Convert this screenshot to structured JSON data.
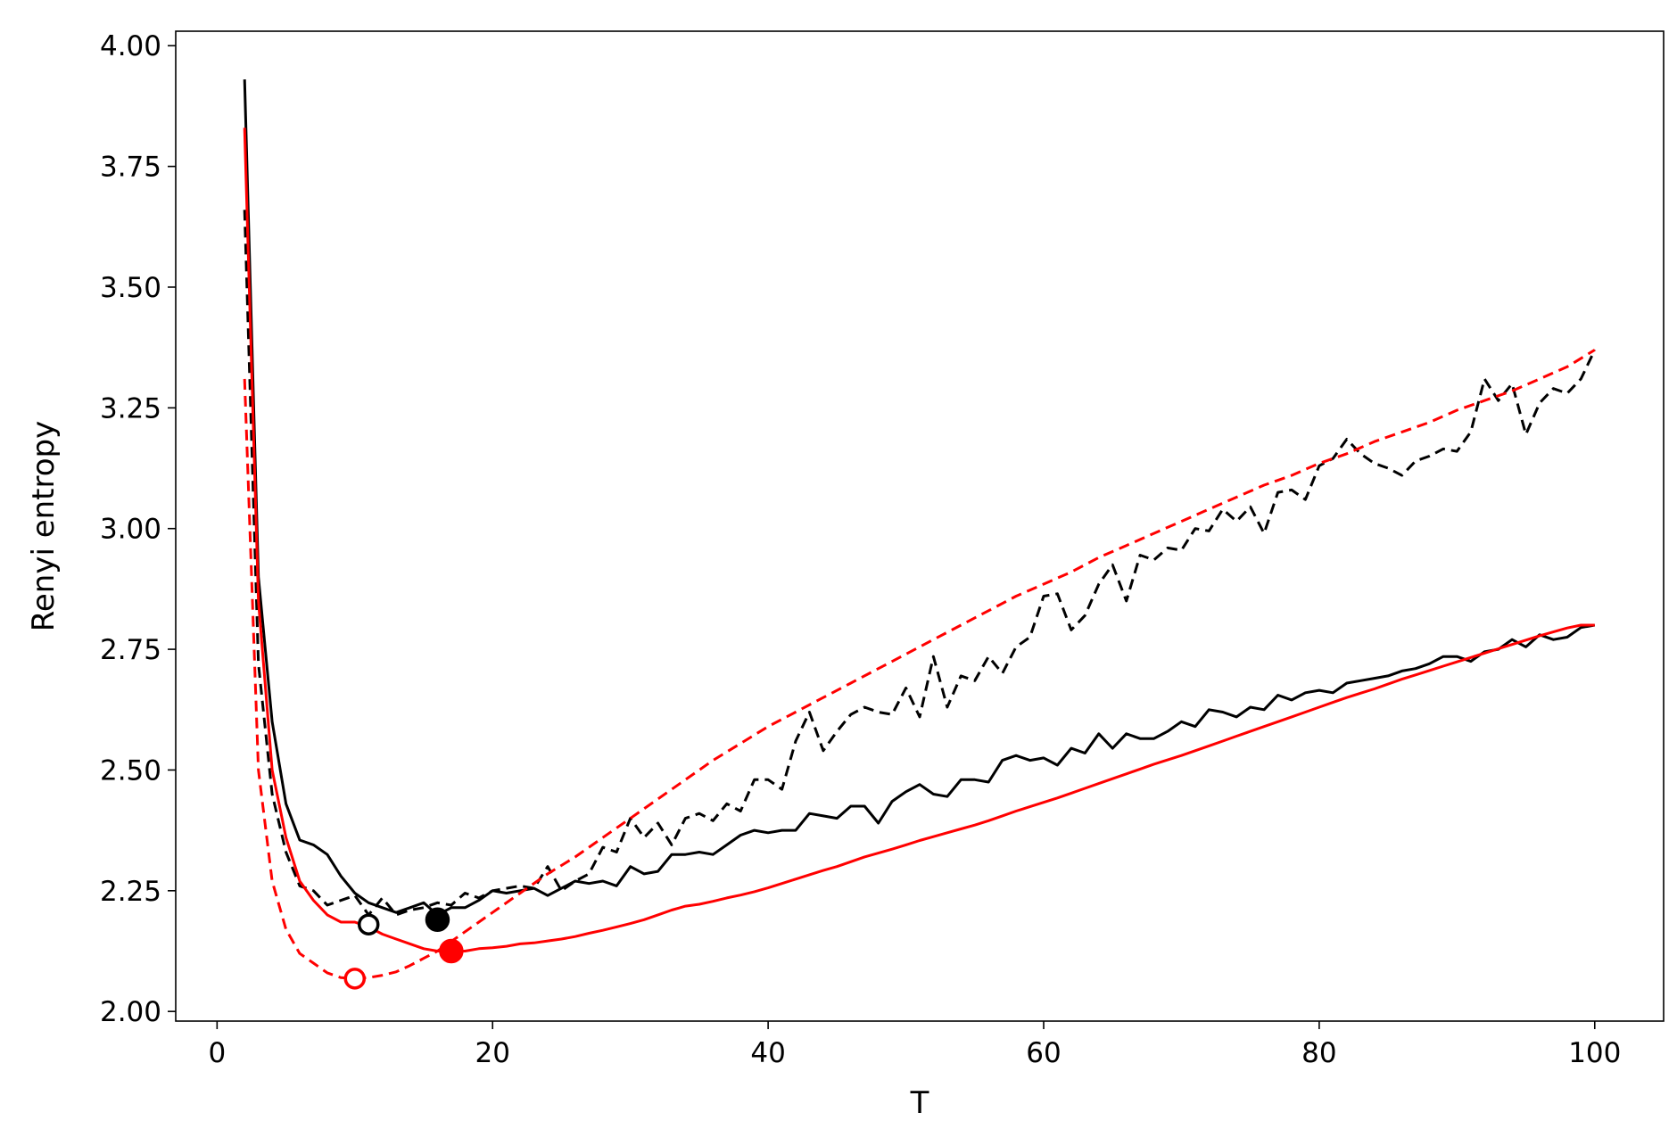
{
  "chart_data": {
    "type": "line",
    "title": "",
    "xlabel": "T",
    "ylabel": "Renyi entropy",
    "xlim": [
      -3,
      105
    ],
    "ylim": [
      1.98,
      4.03
    ],
    "xticks": [
      0,
      20,
      40,
      60,
      80,
      100
    ],
    "xtick_labels": [
      "0",
      "20",
      "40",
      "60",
      "80",
      "100"
    ],
    "yticks": [
      2.0,
      2.25,
      2.5,
      2.75,
      3.0,
      3.25,
      3.5,
      3.75,
      4.0
    ],
    "ytick_labels": [
      "2.00",
      "2.25",
      "2.50",
      "2.75",
      "3.00",
      "3.25",
      "3.50",
      "3.75",
      "4.00"
    ],
    "grid": false,
    "legend": "none",
    "series": [
      {
        "color": "#000000",
        "style": "solid",
        "x": [
          2,
          3,
          4,
          5,
          6,
          7,
          8,
          9,
          10,
          11,
          12,
          13,
          14,
          15,
          16,
          17,
          18,
          19,
          20,
          21,
          22,
          23,
          24,
          25,
          26,
          27,
          28,
          29,
          30,
          31,
          32,
          33,
          34,
          35,
          36,
          37,
          38,
          39,
          40,
          41,
          42,
          43,
          44,
          45,
          46,
          47,
          48,
          49,
          50,
          51,
          52,
          53,
          54,
          55,
          56,
          57,
          58,
          59,
          60,
          61,
          62,
          63,
          64,
          65,
          66,
          67,
          68,
          69,
          70,
          71,
          72,
          73,
          74,
          75,
          76,
          77,
          78,
          79,
          80,
          81,
          82,
          83,
          84,
          85,
          86,
          87,
          88,
          89,
          90,
          91,
          92,
          93,
          94,
          95,
          96,
          97,
          98,
          99,
          100
        ],
        "y": [
          3.93,
          2.9,
          2.6,
          2.43,
          2.355,
          2.345,
          2.325,
          2.28,
          2.245,
          2.225,
          2.215,
          2.205,
          2.215,
          2.225,
          2.2,
          2.215,
          2.215,
          2.23,
          2.25,
          2.245,
          2.25,
          2.255,
          2.24,
          2.255,
          2.27,
          2.265,
          2.27,
          2.26,
          2.3,
          2.285,
          2.29,
          2.325,
          2.325,
          2.33,
          2.325,
          2.345,
          2.365,
          2.375,
          2.37,
          2.375,
          2.375,
          2.41,
          2.405,
          2.4,
          2.425,
          2.425,
          2.39,
          2.435,
          2.455,
          2.47,
          2.45,
          2.445,
          2.48,
          2.48,
          2.475,
          2.52,
          2.53,
          2.52,
          2.525,
          2.51,
          2.545,
          2.535,
          2.575,
          2.545,
          2.575,
          2.565,
          2.565,
          2.58,
          2.6,
          2.59,
          2.625,
          2.62,
          2.61,
          2.63,
          2.625,
          2.655,
          2.645,
          2.66,
          2.665,
          2.66,
          2.68,
          2.685,
          2.69,
          2.695,
          2.705,
          2.71,
          2.72,
          2.735,
          2.735,
          2.725,
          2.745,
          2.75,
          2.77,
          2.755,
          2.78,
          2.77,
          2.775,
          2.795,
          2.8
        ]
      },
      {
        "color": "#000000",
        "style": "dashed",
        "x": [
          2,
          3,
          4,
          5,
          6,
          7,
          8,
          9,
          10,
          11,
          12,
          13,
          14,
          15,
          16,
          17,
          18,
          19,
          20,
          21,
          22,
          23,
          24,
          25,
          26,
          27,
          28,
          29,
          30,
          31,
          32,
          33,
          34,
          35,
          36,
          37,
          38,
          39,
          40,
          41,
          42,
          43,
          44,
          45,
          46,
          47,
          48,
          49,
          50,
          51,
          52,
          53,
          54,
          55,
          56,
          57,
          58,
          59,
          60,
          61,
          62,
          63,
          64,
          65,
          66,
          67,
          68,
          69,
          70,
          71,
          72,
          73,
          74,
          75,
          76,
          77,
          78,
          79,
          80,
          81,
          82,
          83,
          84,
          85,
          86,
          87,
          88,
          89,
          90,
          91,
          92,
          93,
          94,
          95,
          96,
          97,
          98,
          99,
          100
        ],
        "y": [
          3.66,
          2.72,
          2.45,
          2.33,
          2.26,
          2.25,
          2.22,
          2.23,
          2.24,
          2.2,
          2.235,
          2.2,
          2.21,
          2.215,
          2.225,
          2.22,
          2.245,
          2.235,
          2.25,
          2.255,
          2.26,
          2.255,
          2.3,
          2.25,
          2.27,
          2.285,
          2.34,
          2.33,
          2.4,
          2.36,
          2.39,
          2.345,
          2.4,
          2.41,
          2.395,
          2.43,
          2.415,
          2.48,
          2.48,
          2.46,
          2.56,
          2.62,
          2.54,
          2.58,
          2.615,
          2.63,
          2.62,
          2.615,
          2.67,
          2.61,
          2.735,
          2.63,
          2.695,
          2.685,
          2.735,
          2.7,
          2.755,
          2.775,
          2.86,
          2.865,
          2.79,
          2.82,
          2.885,
          2.925,
          2.85,
          2.945,
          2.935,
          2.96,
          2.955,
          3.0,
          2.995,
          3.04,
          3.015,
          3.045,
          2.99,
          3.075,
          3.08,
          3.06,
          3.13,
          3.145,
          3.185,
          3.155,
          3.135,
          3.125,
          3.11,
          3.14,
          3.15,
          3.165,
          3.16,
          3.2,
          3.31,
          3.265,
          3.3,
          3.195,
          3.26,
          3.29,
          3.28,
          3.31,
          3.37
        ]
      },
      {
        "color": "#ff0000",
        "style": "solid",
        "x": [
          2,
          3,
          4,
          5,
          6,
          7,
          8,
          9,
          10,
          11,
          12,
          13,
          14,
          15,
          16,
          17,
          18,
          19,
          20,
          21,
          22,
          23,
          24,
          25,
          26,
          27,
          28,
          29,
          30,
          31,
          32,
          33,
          34,
          35,
          36,
          37,
          38,
          39,
          40,
          41,
          42,
          43,
          44,
          45,
          46,
          47,
          48,
          49,
          50,
          51,
          52,
          53,
          54,
          55,
          56,
          57,
          58,
          59,
          60,
          61,
          62,
          63,
          64,
          65,
          66,
          67,
          68,
          69,
          70,
          71,
          72,
          73,
          74,
          75,
          76,
          77,
          78,
          79,
          80,
          81,
          82,
          83,
          84,
          85,
          86,
          87,
          88,
          89,
          90,
          91,
          92,
          93,
          94,
          95,
          96,
          97,
          98,
          99,
          100
        ],
        "y": [
          3.83,
          2.85,
          2.5,
          2.36,
          2.27,
          2.23,
          2.2,
          2.185,
          2.185,
          2.175,
          2.16,
          2.15,
          2.14,
          2.13,
          2.125,
          2.125,
          2.125,
          2.13,
          2.132,
          2.135,
          2.14,
          2.142,
          2.146,
          2.15,
          2.155,
          2.162,
          2.168,
          2.175,
          2.182,
          2.19,
          2.2,
          2.21,
          2.218,
          2.222,
          2.228,
          2.235,
          2.241,
          2.248,
          2.256,
          2.265,
          2.274,
          2.283,
          2.292,
          2.3,
          2.31,
          2.32,
          2.328,
          2.336,
          2.345,
          2.354,
          2.362,
          2.37,
          2.378,
          2.386,
          2.395,
          2.405,
          2.415,
          2.424,
          2.433,
          2.442,
          2.452,
          2.462,
          2.472,
          2.482,
          2.492,
          2.502,
          2.512,
          2.521,
          2.53,
          2.54,
          2.55,
          2.56,
          2.57,
          2.58,
          2.59,
          2.6,
          2.61,
          2.62,
          2.63,
          2.64,
          2.65,
          2.659,
          2.668,
          2.678,
          2.688,
          2.697,
          2.706,
          2.715,
          2.724,
          2.733,
          2.742,
          2.751,
          2.76,
          2.769,
          2.778,
          2.786,
          2.794,
          2.8,
          2.8
        ]
      },
      {
        "color": "#ff0000",
        "style": "dashed",
        "x": [
          2,
          3,
          4,
          5,
          6,
          7,
          8,
          9,
          10,
          11,
          12,
          13,
          14,
          15,
          16,
          17,
          18,
          19,
          20,
          22,
          24,
          26,
          28,
          30,
          32,
          34,
          36,
          38,
          40,
          42,
          44,
          46,
          48,
          50,
          52,
          54,
          56,
          58,
          60,
          62,
          64,
          66,
          68,
          70,
          72,
          74,
          76,
          78,
          80,
          82,
          84,
          86,
          88,
          90,
          92,
          94,
          96,
          98,
          100
        ],
        "y": [
          3.31,
          2.5,
          2.27,
          2.17,
          2.12,
          2.1,
          2.08,
          2.07,
          2.068,
          2.07,
          2.075,
          2.082,
          2.095,
          2.11,
          2.125,
          2.145,
          2.165,
          2.185,
          2.205,
          2.245,
          2.285,
          2.32,
          2.36,
          2.4,
          2.44,
          2.48,
          2.52,
          2.555,
          2.59,
          2.62,
          2.65,
          2.68,
          2.71,
          2.74,
          2.77,
          2.8,
          2.83,
          2.86,
          2.885,
          2.91,
          2.94,
          2.965,
          2.99,
          3.015,
          3.04,
          3.065,
          3.09,
          3.11,
          3.135,
          3.155,
          3.18,
          3.2,
          3.22,
          3.245,
          3.265,
          3.285,
          3.31,
          3.335,
          3.37
        ]
      }
    ],
    "markers": [
      {
        "color": "#000000",
        "filled": false,
        "x": 11,
        "y": 2.18
      },
      {
        "color": "#000000",
        "filled": true,
        "x": 16,
        "y": 2.19
      },
      {
        "color": "#ff0000",
        "filled": false,
        "x": 10,
        "y": 2.068
      },
      {
        "color": "#ff0000",
        "filled": true,
        "x": 17,
        "y": 2.125
      }
    ]
  }
}
